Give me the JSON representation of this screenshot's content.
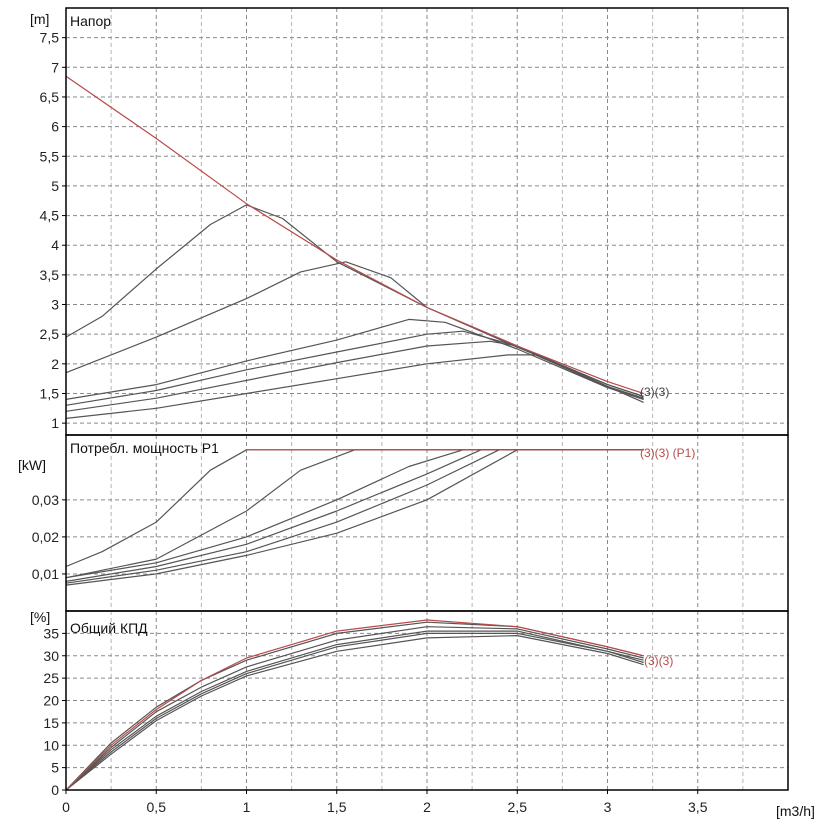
{
  "chart_data": [
    {
      "type": "line",
      "title": "Напор",
      "ylabel": "[m]",
      "xlabel": "",
      "xlim": [
        0,
        4
      ],
      "ylim": [
        0.8,
        8
      ],
      "grid": true,
      "y_ticks": [
        "1",
        "1,5",
        "2",
        "2,5",
        "3",
        "3,5",
        "4",
        "4,5",
        "5",
        "5,5",
        "6",
        "6,5",
        "7",
        "7,5"
      ],
      "y_tick_values": [
        1,
        1.5,
        2,
        2.5,
        3,
        3.5,
        4,
        4.5,
        5,
        5.5,
        6,
        6.5,
        7,
        7.5
      ],
      "end_label": "(3)(3)",
      "series": [
        {
          "color": "#b84a4a",
          "x": [
            0,
            0.5,
            1.0,
            1.5,
            2.0,
            2.5,
            3.0,
            3.2
          ],
          "y": [
            6.85,
            5.8,
            4.7,
            3.75,
            2.95,
            2.3,
            1.7,
            1.5
          ]
        },
        {
          "color": "#555555",
          "x": [
            0,
            0.2,
            0.5,
            0.8,
            1.0,
            1.2,
            1.5,
            2.0,
            2.5,
            3.0,
            3.2
          ],
          "y": [
            2.45,
            2.8,
            3.6,
            4.35,
            4.68,
            4.45,
            3.72,
            2.95,
            2.3,
            1.65,
            1.45
          ]
        },
        {
          "color": "#555555",
          "x": [
            0,
            0.5,
            1.0,
            1.3,
            1.55,
            1.8,
            2.0,
            2.5,
            3.0,
            3.2
          ],
          "y": [
            1.85,
            2.45,
            3.1,
            3.55,
            3.72,
            3.45,
            2.95,
            2.28,
            1.65,
            1.45
          ]
        },
        {
          "color": "#555555",
          "x": [
            0,
            0.5,
            1.0,
            1.5,
            1.9,
            2.1,
            2.5,
            3.0,
            3.2
          ],
          "y": [
            1.4,
            1.65,
            2.05,
            2.4,
            2.75,
            2.7,
            2.25,
            1.6,
            1.4
          ]
        },
        {
          "color": "#555555",
          "x": [
            0,
            0.5,
            1.0,
            1.5,
            2.0,
            2.2,
            2.5,
            3.0,
            3.2
          ],
          "y": [
            1.3,
            1.55,
            1.9,
            2.2,
            2.5,
            2.55,
            2.3,
            1.62,
            1.42
          ]
        },
        {
          "color": "#555555",
          "x": [
            0,
            0.5,
            1.0,
            1.5,
            2.0,
            2.35,
            2.5,
            3.0,
            3.2
          ],
          "y": [
            1.2,
            1.42,
            1.72,
            2.02,
            2.3,
            2.38,
            2.3,
            1.6,
            1.4
          ]
        },
        {
          "color": "#555555",
          "x": [
            0,
            0.5,
            1.0,
            1.5,
            2.0,
            2.45,
            2.6,
            3.0,
            3.2
          ],
          "y": [
            1.08,
            1.25,
            1.5,
            1.75,
            2.0,
            2.15,
            2.15,
            1.62,
            1.35
          ]
        }
      ]
    },
    {
      "type": "line",
      "title": "Потребл. мощность P1",
      "ylabel": "[kW]",
      "xlabel": "",
      "xlim": [
        0,
        4
      ],
      "ylim": [
        0,
        0.0475
      ],
      "grid": true,
      "y_ticks": [
        "0,01",
        "0,02",
        "0,03"
      ],
      "y_tick_values": [
        0.01,
        0.02,
        0.03
      ],
      "end_label": "(3)(3) (P1)",
      "series": [
        {
          "color": "#b84a4a",
          "x": [
            1.0,
            2.0,
            3.2
          ],
          "y": [
            0.0435,
            0.0435,
            0.0435
          ]
        },
        {
          "color": "#555555",
          "x": [
            0,
            0.2,
            0.5,
            0.8,
            1.0,
            1.2,
            3.2
          ],
          "y": [
            0.012,
            0.016,
            0.024,
            0.038,
            0.0435,
            0.0435,
            0.0435
          ]
        },
        {
          "color": "#555555",
          "x": [
            0,
            0.5,
            1.0,
            1.3,
            1.6,
            1.8,
            3.2
          ],
          "y": [
            0.009,
            0.014,
            0.027,
            0.038,
            0.0435,
            0.0435,
            0.0435
          ]
        },
        {
          "color": "#555555",
          "x": [
            0,
            0.5,
            1.0,
            1.5,
            1.9,
            2.2,
            3.2
          ],
          "y": [
            0.009,
            0.013,
            0.02,
            0.03,
            0.039,
            0.0435,
            0.0435
          ]
        },
        {
          "color": "#555555",
          "x": [
            0,
            0.5,
            1.0,
            1.5,
            2.0,
            2.3,
            3.2
          ],
          "y": [
            0.008,
            0.012,
            0.018,
            0.027,
            0.037,
            0.0435,
            0.0435
          ]
        },
        {
          "color": "#555555",
          "x": [
            0,
            0.5,
            1.0,
            1.5,
            2.0,
            2.4,
            3.2
          ],
          "y": [
            0.0075,
            0.011,
            0.016,
            0.024,
            0.034,
            0.0435,
            0.0435
          ]
        },
        {
          "color": "#555555",
          "x": [
            0,
            0.5,
            1.0,
            1.5,
            2.0,
            2.5,
            3.2
          ],
          "y": [
            0.007,
            0.01,
            0.015,
            0.021,
            0.03,
            0.0435,
            0.0435
          ]
        }
      ]
    },
    {
      "type": "line",
      "title": "Общий КПД",
      "ylabel": "[%]",
      "xlabel": "[m3/h]",
      "xlim": [
        0,
        4
      ],
      "ylim": [
        0,
        40
      ],
      "grid": true,
      "y_ticks": [
        "0",
        "5",
        "10",
        "15",
        "20",
        "25",
        "30",
        "35"
      ],
      "y_tick_values": [
        0,
        5,
        10,
        15,
        20,
        25,
        30,
        35
      ],
      "x_ticks": [
        "0",
        "0,5",
        "1",
        "1,5",
        "2",
        "2,5",
        "3",
        "3,5"
      ],
      "x_tick_values": [
        0,
        0.5,
        1,
        1.5,
        2,
        2.5,
        3,
        3.5
      ],
      "end_label": "(3)(3)",
      "series": [
        {
          "color": "#b84a4a",
          "x": [
            0,
            0.25,
            0.5,
            0.75,
            1.0,
            1.5,
            2.0,
            2.5,
            3.0,
            3.2
          ],
          "y": [
            0,
            10,
            18,
            24.5,
            29.5,
            35.5,
            38,
            36.5,
            32,
            30
          ]
        },
        {
          "color": "#555555",
          "x": [
            0,
            0.25,
            0.5,
            0.75,
            1.0,
            1.5,
            2.0,
            2.5,
            3.0,
            3.2
          ],
          "y": [
            0,
            10.5,
            18.5,
            24.5,
            29,
            35,
            37.5,
            36.5,
            32,
            30
          ]
        },
        {
          "color": "#555555",
          "x": [
            0,
            0.25,
            0.5,
            0.75,
            1.0,
            1.5,
            2.0,
            2.5,
            3.0,
            3.2
          ],
          "y": [
            0,
            9.5,
            17.5,
            23,
            27.5,
            33.5,
            36.5,
            36,
            31.5,
            29.5
          ]
        },
        {
          "color": "#555555",
          "x": [
            0,
            0.25,
            0.5,
            0.75,
            1.0,
            1.5,
            2.0,
            2.5,
            3.0,
            3.2
          ],
          "y": [
            0,
            9,
            16.5,
            22,
            26.5,
            32.5,
            35.5,
            35.5,
            31,
            29
          ]
        },
        {
          "color": "#555555",
          "x": [
            0,
            0.25,
            0.5,
            0.75,
            1.0,
            1.5,
            2.0,
            2.5,
            3.0,
            3.2
          ],
          "y": [
            0,
            8.5,
            16,
            21.5,
            26,
            32,
            35,
            35,
            31,
            28.5
          ]
        },
        {
          "color": "#555555",
          "x": [
            0,
            0.25,
            0.5,
            0.75,
            1.0,
            1.5,
            2.0,
            2.5,
            3.0,
            3.2
          ],
          "y": [
            0,
            8,
            15.5,
            21,
            25.5,
            31,
            34,
            34.5,
            30.5,
            28
          ]
        }
      ]
    }
  ]
}
